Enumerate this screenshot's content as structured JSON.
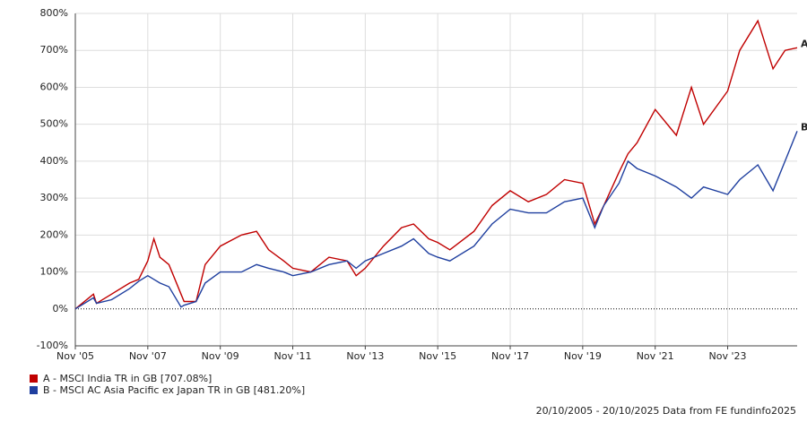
{
  "chart_data": {
    "type": "line",
    "x": [
      "2005-11",
      "2006-05",
      "2006-06",
      "2006-11",
      "2007-05",
      "2007-08",
      "2007-11",
      "2008-01",
      "2008-03",
      "2008-06",
      "2008-10",
      "2008-11",
      "2009-03",
      "2009-06",
      "2009-11",
      "2010-06",
      "2010-11",
      "2011-03",
      "2011-08",
      "2011-11",
      "2012-05",
      "2012-11",
      "2013-05",
      "2013-08",
      "2013-11",
      "2014-05",
      "2014-11",
      "2015-03",
      "2015-08",
      "2015-11",
      "2016-03",
      "2016-11",
      "2017-05",
      "2017-11",
      "2018-05",
      "2018-11",
      "2019-05",
      "2019-11",
      "2020-03",
      "2020-06",
      "2020-11",
      "2021-02",
      "2021-05",
      "2021-11",
      "2022-06",
      "2022-11",
      "2023-03",
      "2023-11",
      "2024-03",
      "2024-09",
      "2025-02",
      "2025-06",
      "2025-10"
    ],
    "series": [
      {
        "name": "A - MSCI India TR in GB [707.08%]",
        "end_label": "A",
        "color": "#c00000",
        "values": [
          0,
          40,
          15,
          40,
          70,
          80,
          130,
          190,
          140,
          120,
          40,
          20,
          20,
          120,
          170,
          200,
          210,
          160,
          130,
          110,
          100,
          140,
          130,
          90,
          110,
          170,
          220,
          230,
          190,
          180,
          160,
          210,
          280,
          320,
          290,
          310,
          350,
          340,
          230,
          280,
          370,
          420,
          450,
          540,
          470,
          600,
          500,
          590,
          700,
          780,
          650,
          700,
          707.08
        ]
      },
      {
        "name": "B - MSCI AC Asia Pacific ex Japan TR in GB [481.20%]",
        "end_label": "B",
        "color": "#1f3f9f",
        "values": [
          0,
          30,
          15,
          25,
          55,
          75,
          90,
          80,
          70,
          60,
          5,
          10,
          20,
          70,
          100,
          100,
          120,
          110,
          100,
          90,
          100,
          120,
          130,
          110,
          130,
          150,
          170,
          190,
          150,
          140,
          130,
          170,
          230,
          270,
          260,
          260,
          290,
          300,
          220,
          280,
          340,
          400,
          380,
          360,
          330,
          300,
          330,
          310,
          350,
          390,
          320,
          400,
          481.2
        ]
      }
    ],
    "ylim": [
      -100,
      800
    ],
    "yticks": [
      {
        "value": -100,
        "label": "-100%"
      },
      {
        "value": 0,
        "label": "0%"
      },
      {
        "value": 100,
        "label": "100%"
      },
      {
        "value": 200,
        "label": "200%"
      },
      {
        "value": 300,
        "label": "300%"
      },
      {
        "value": 400,
        "label": "400%"
      },
      {
        "value": 500,
        "label": "500%"
      },
      {
        "value": 600,
        "label": "600%"
      },
      {
        "value": 700,
        "label": "700%"
      },
      {
        "value": 800,
        "label": "800%"
      }
    ],
    "xlim": [
      "2005-11",
      "2025-10"
    ],
    "xticks": [
      {
        "value": "2005-11",
        "label": "Nov '05"
      },
      {
        "value": "2007-11",
        "label": "Nov '07"
      },
      {
        "value": "2009-11",
        "label": "Nov '09"
      },
      {
        "value": "2011-11",
        "label": "Nov '11"
      },
      {
        "value": "2013-11",
        "label": "Nov '13"
      },
      {
        "value": "2015-11",
        "label": "Nov '15"
      },
      {
        "value": "2017-11",
        "label": "Nov '17"
      },
      {
        "value": "2019-11",
        "label": "Nov '19"
      },
      {
        "value": "2021-11",
        "label": "Nov '21"
      },
      {
        "value": "2023-11",
        "label": "Nov '23"
      }
    ],
    "grid": true,
    "footer": "20/10/2005 - 20/10/2025 Data from FE fundinfo2025"
  }
}
